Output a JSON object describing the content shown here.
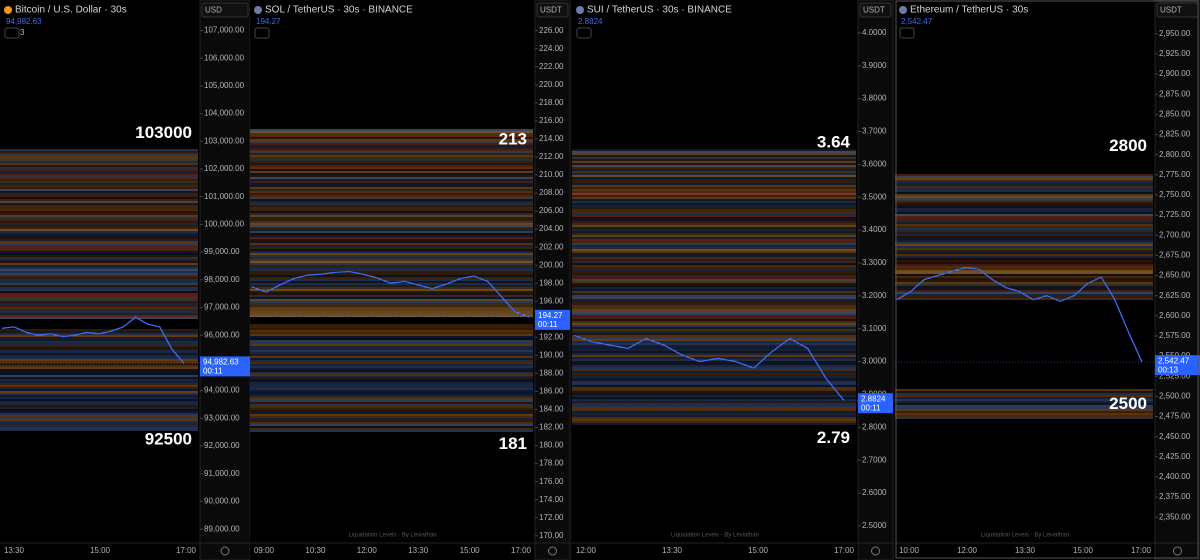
{
  "chart_data": [
    {
      "type": "line",
      "title": "Bitcoin / U.S. Dollar · 30s",
      "currency": "USD",
      "indicator_count": "3",
      "countdown": "00:11",
      "last_price": {
        "value": 94982.63,
        "label": "94,982.63"
      },
      "series": [
        {
          "color": "#3d6af0",
          "values": [
            96250,
            96300,
            96100,
            96000,
            96050,
            95950,
            96000,
            96100,
            96050,
            96150,
            96300,
            96650,
            96400,
            96300,
            95500,
            94982.63
          ]
        }
      ],
      "levels": [
        103000,
        92500
      ],
      "ylim": [
        88500,
        108100
      ],
      "yticks": [
        {
          "value": 89000,
          "label": "89,000.00"
        },
        {
          "value": 90000,
          "label": "90,000.00"
        },
        {
          "value": 91000,
          "label": "91,000.00"
        },
        {
          "value": 92000,
          "label": "92,000.00"
        },
        {
          "value": 93000,
          "label": "93,000.00"
        },
        {
          "value": 94000,
          "label": "94,000.00"
        },
        {
          "value": 95000,
          "label": "95,000.00"
        },
        {
          "value": 96000,
          "label": "96,000.00"
        },
        {
          "value": 97000,
          "label": "97,000.00"
        },
        {
          "value": 98000,
          "label": "98,000.00"
        },
        {
          "value": 99000,
          "label": "99,000.00"
        },
        {
          "value": 100000,
          "label": "100,000.00"
        },
        {
          "value": 101000,
          "label": "101,000.00"
        },
        {
          "value": 102000,
          "label": "102,000.00"
        },
        {
          "value": 103000,
          "label": "103,000.00"
        },
        {
          "value": 104000,
          "label": "104,000.00"
        },
        {
          "value": 105000,
          "label": "105,000.00"
        },
        {
          "value": 106000,
          "label": "106,000.00"
        },
        {
          "value": 107000,
          "label": "107,000.00"
        }
      ],
      "x_labels": [
        "13:30",
        "15:00",
        "17:00"
      ]
    },
    {
      "type": "line",
      "title": "SOL / TetherUS · 30s · BINANCE",
      "currency": "USDT",
      "countdown": "00:11",
      "watermark": "Liquidation Levels - By Leviathan",
      "last_price": {
        "value": 194.27,
        "label": "194.27"
      },
      "series": [
        {
          "color": "#3d6af0",
          "values": [
            197.6,
            197.0,
            197.8,
            198.5,
            198.9,
            199.0,
            199.2,
            199.3,
            199.0,
            198.6,
            198.0,
            198.2,
            197.8,
            197.4,
            197.9,
            198.5,
            198.8,
            198.2,
            196.5,
            194.8,
            194.27
          ]
        }
      ],
      "levels": [
        213,
        181
      ],
      "ylim": [
        169.2,
        229.4
      ],
      "yticks": [
        {
          "value": 170,
          "label": "170.00"
        },
        {
          "value": 172,
          "label": "172.00"
        },
        {
          "value": 174,
          "label": "174.00"
        },
        {
          "value": 176,
          "label": "176.00"
        },
        {
          "value": 178,
          "label": "178.00"
        },
        {
          "value": 180,
          "label": "180.00"
        },
        {
          "value": 182,
          "label": "182.00"
        },
        {
          "value": 184,
          "label": "184.00"
        },
        {
          "value": 186,
          "label": "186.00"
        },
        {
          "value": 188,
          "label": "188.00"
        },
        {
          "value": 190,
          "label": "190.00"
        },
        {
          "value": 192,
          "label": "192.00"
        },
        {
          "value": 194,
          "label": "194.00"
        },
        {
          "value": 196,
          "label": "196.00"
        },
        {
          "value": 198,
          "label": "198.00"
        },
        {
          "value": 200,
          "label": "200.00"
        },
        {
          "value": 202,
          "label": "202.00"
        },
        {
          "value": 204,
          "label": "204.00"
        },
        {
          "value": 206,
          "label": "206.00"
        },
        {
          "value": 208,
          "label": "208.00"
        },
        {
          "value": 210,
          "label": "210.00"
        },
        {
          "value": 212,
          "label": "212.00"
        },
        {
          "value": 214,
          "label": "214.00"
        },
        {
          "value": 216,
          "label": "216.00"
        },
        {
          "value": 218,
          "label": "218.00"
        },
        {
          "value": 220,
          "label": "220.00"
        },
        {
          "value": 222,
          "label": "222.00"
        },
        {
          "value": 224,
          "label": "224.00"
        },
        {
          "value": 226,
          "label": "226.00"
        }
      ],
      "x_labels": [
        "09:00",
        "10:30",
        "12:00",
        "13:30",
        "15:00",
        "17:00"
      ]
    },
    {
      "type": "line",
      "title": "SUI / TetherUS · 30s · BINANCE",
      "currency": "USDT",
      "countdown": "00:11",
      "watermark": "Liquidation Levels - By Leviathan",
      "last_price": {
        "value": 2.8824,
        "label": "2.8824"
      },
      "series": [
        {
          "color": "#3d6af0",
          "values": [
            3.08,
            3.06,
            3.05,
            3.04,
            3.07,
            3.05,
            3.02,
            3.0,
            3.01,
            3.0,
            2.98,
            3.03,
            3.07,
            3.04,
            2.95,
            2.8824
          ]
        }
      ],
      "levels": [
        3.64,
        2.79
      ],
      "ylim": [
        2.448,
        4.1
      ],
      "yticks": [
        {
          "value": 2.5,
          "label": "2.5000"
        },
        {
          "value": 2.6,
          "label": "2.6000"
        },
        {
          "value": 2.7,
          "label": "2.7000"
        },
        {
          "value": 2.8,
          "label": "2.8000"
        },
        {
          "value": 2.9,
          "label": "2.9000"
        },
        {
          "value": 3.0,
          "label": "3.0000"
        },
        {
          "value": 3.1,
          "label": "3.1000"
        },
        {
          "value": 3.2,
          "label": "3.2000"
        },
        {
          "value": 3.3,
          "label": "3.3000"
        },
        {
          "value": 3.4,
          "label": "3.4000"
        },
        {
          "value": 3.5,
          "label": "3.5000"
        },
        {
          "value": 3.6,
          "label": "3.6000"
        },
        {
          "value": 3.7,
          "label": "3.7000"
        },
        {
          "value": 3.8,
          "label": "3.8000"
        },
        {
          "value": 3.9,
          "label": "3.9000"
        },
        {
          "value": 4.0,
          "label": "4.0000"
        }
      ],
      "x_labels": [
        "12:00",
        "13:30",
        "15:00",
        "17:00"
      ]
    },
    {
      "type": "line",
      "title": "Ethereum / TetherUS · 30s",
      "currency": "USDT",
      "countdown": "00:13",
      "watermark": "Liquidation Levels - By Leviathan",
      "last_price": {
        "value": 2542.47,
        "label": "2,542.47"
      },
      "series": [
        {
          "color": "#3d6af0",
          "values": [
            2620,
            2630,
            2645,
            2650,
            2655,
            2660,
            2658,
            2645,
            2635,
            2630,
            2620,
            2625,
            2618,
            2625,
            2640,
            2648,
            2620,
            2580,
            2542.47
          ]
        }
      ],
      "levels": [
        2800,
        2500
      ],
      "ylim": [
        2318,
        2992
      ],
      "yticks": [
        {
          "value": 2350,
          "label": "2,350.00"
        },
        {
          "value": 2375,
          "label": "2,375.00"
        },
        {
          "value": 2400,
          "label": "2,400.00"
        },
        {
          "value": 2425,
          "label": "2,425.00"
        },
        {
          "value": 2450,
          "label": "2,450.00"
        },
        {
          "value": 2475,
          "label": "2,475.00"
        },
        {
          "value": 2500,
          "label": "2,500.00"
        },
        {
          "value": 2525,
          "label": "2,525.00"
        },
        {
          "value": 2550,
          "label": "2,550.00"
        },
        {
          "value": 2575,
          "label": "2,575.00"
        },
        {
          "value": 2600,
          "label": "2,600.00"
        },
        {
          "value": 2625,
          "label": "2,625.00"
        },
        {
          "value": 2650,
          "label": "2,650.00"
        },
        {
          "value": 2675,
          "label": "2,675.00"
        },
        {
          "value": 2700,
          "label": "2,700.00"
        },
        {
          "value": 2725,
          "label": "2,725.00"
        },
        {
          "value": 2750,
          "label": "2,750.00"
        },
        {
          "value": 2775,
          "label": "2,775.00"
        },
        {
          "value": 2800,
          "label": "2,800.00"
        },
        {
          "value": 2825,
          "label": "2,825.00"
        },
        {
          "value": 2850,
          "label": "2,850.00"
        },
        {
          "value": 2875,
          "label": "2,875.00"
        },
        {
          "value": 2900,
          "label": "2,900.00"
        },
        {
          "value": 2925,
          "label": "2,925.00"
        },
        {
          "value": 2950,
          "label": "2,950.00"
        }
      ],
      "x_labels": [
        "10:00",
        "12:00",
        "13:30",
        "15:00",
        "17:00"
      ]
    }
  ]
}
